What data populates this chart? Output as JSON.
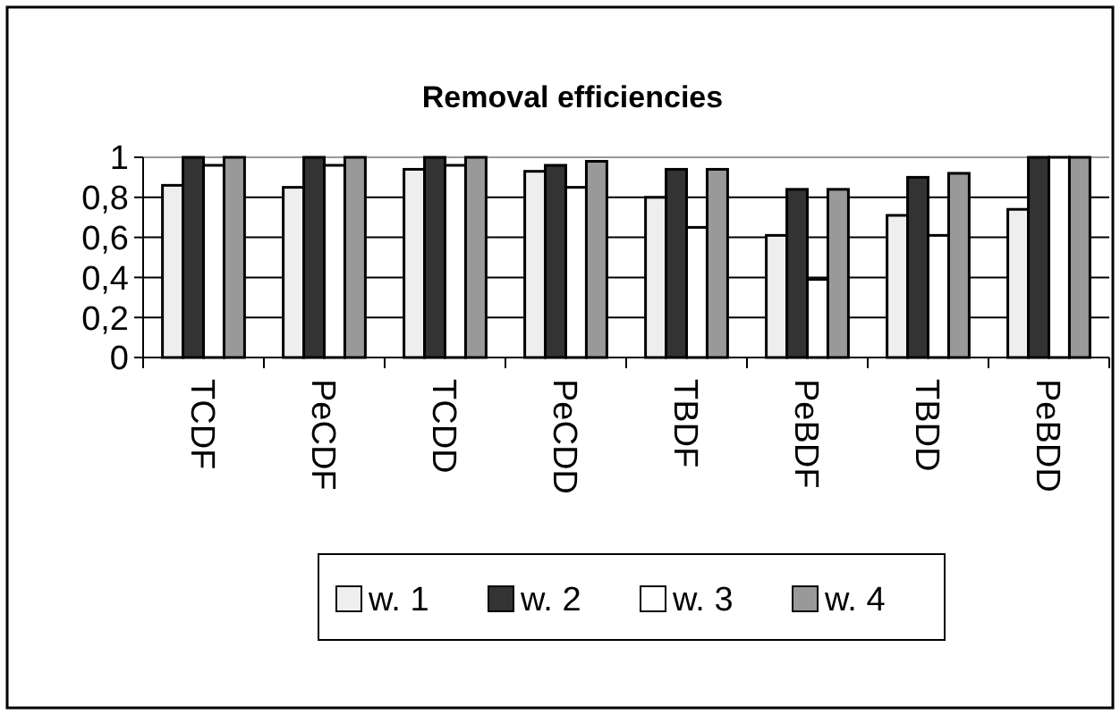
{
  "chart_data": {
    "type": "bar",
    "title": "Removal efficiencies",
    "categories": [
      "TCDF",
      "PeCDF",
      "TCDD",
      "PeCDD",
      "TBDF",
      "PeBDF",
      "TBDD",
      "PeBDD"
    ],
    "series": [
      {
        "name": "w. 1",
        "color": "#eeeeee",
        "values": [
          0.86,
          0.85,
          0.94,
          0.93,
          0.8,
          0.61,
          0.71,
          0.74
        ]
      },
      {
        "name": "w. 2",
        "color": "#333333",
        "values": [
          1,
          1,
          1,
          0.96,
          0.94,
          0.84,
          0.9,
          1
        ]
      },
      {
        "name": "w. 3",
        "color": "#ffffff",
        "values": [
          0.96,
          0.96,
          0.96,
          0.85,
          0.65,
          0.39,
          0.61,
          1
        ]
      },
      {
        "name": "w. 4",
        "color": "#999999",
        "values": [
          1,
          1,
          1,
          0.98,
          0.94,
          0.84,
          0.92,
          1
        ]
      }
    ],
    "ylim": [
      0,
      1
    ],
    "yticks": [
      0,
      {
        "value": 0.2,
        "label": "0,2"
      },
      {
        "value": 0.4,
        "label": "0,4"
      },
      {
        "value": 0.6,
        "label": "0,6"
      },
      {
        "value": 0.8,
        "label": "0,8"
      },
      1
    ],
    "grid": "y",
    "legend": "bottom"
  }
}
